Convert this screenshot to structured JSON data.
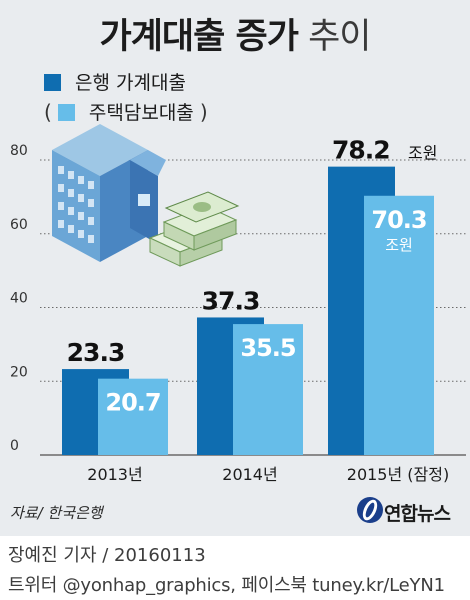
{
  "title": {
    "bold": "가계대출 증가",
    "light": "추이"
  },
  "legend": {
    "bank_label": "은행 가계대출",
    "mortgage_label": "주택담보대출",
    "paren_open": "(",
    "paren_close": ")"
  },
  "colors": {
    "bank": "#0f6db0",
    "mortgage": "#66bde9",
    "panel": "#e9ecef"
  },
  "icons": {
    "building": "apartment-building-icon",
    "money": "cash-bundle-icon"
  },
  "chart_data": {
    "type": "bar",
    "categories": [
      "2013년",
      "2014년",
      "2015년 (잠정)"
    ],
    "series": [
      {
        "name": "은행 가계대출",
        "values": [
          23.3,
          37.3,
          78.2
        ]
      },
      {
        "name": "주택담보대출",
        "values": [
          20.7,
          35.5,
          70.3
        ]
      }
    ],
    "value_labels": {
      "bank": [
        "23.3",
        "37.3",
        "78.2"
      ],
      "mortgage": [
        "20.7",
        "35.5",
        "70.3"
      ]
    },
    "unit_label": "조원",
    "yticks": [
      0,
      20,
      40,
      60,
      80
    ],
    "ylim": [
      0,
      80
    ],
    "grid": true,
    "legend_position": "top-left"
  },
  "source": "자료/ 한국은행",
  "brand": "연합뉴스",
  "footer": {
    "line1": "장예진 기자 / 20160113",
    "line2": "트위터 @yonhap_graphics, 페이스북 tuney.kr/LeYN1"
  }
}
